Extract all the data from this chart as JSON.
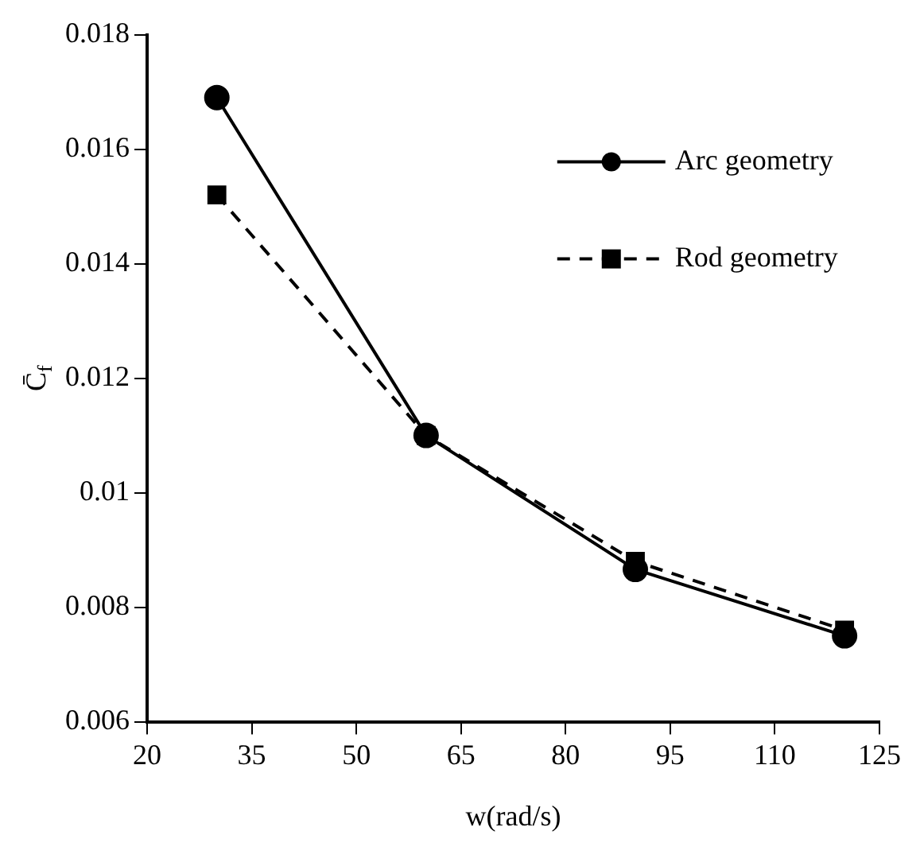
{
  "chart_data": {
    "type": "line",
    "xlabel": "w(rad/s)",
    "ylabel": "C̄$_{f}$",
    "x": [
      30,
      60,
      90,
      120
    ],
    "series": [
      {
        "name": "Arc geometry",
        "color": "#000000",
        "values": [
          0.0169,
          0.011,
          0.00866,
          0.0075
        ],
        "marker": "circle",
        "line_style": "solid"
      },
      {
        "name": "Rod geometry",
        "color": "#000000",
        "values": [
          0.0152,
          0.011,
          0.0088,
          0.0076
        ],
        "marker": "square",
        "line_style": "dashed"
      }
    ],
    "xlim": [
      20,
      125
    ],
    "xticks": [
      20,
      35,
      50,
      65,
      80,
      95,
      110,
      125
    ],
    "ylim": [
      0.006,
      0.018
    ],
    "yticks": [
      0.006,
      0.008,
      0.01,
      0.012,
      0.014,
      0.016,
      0.018
    ],
    "grid": false,
    "legend": "top right"
  }
}
